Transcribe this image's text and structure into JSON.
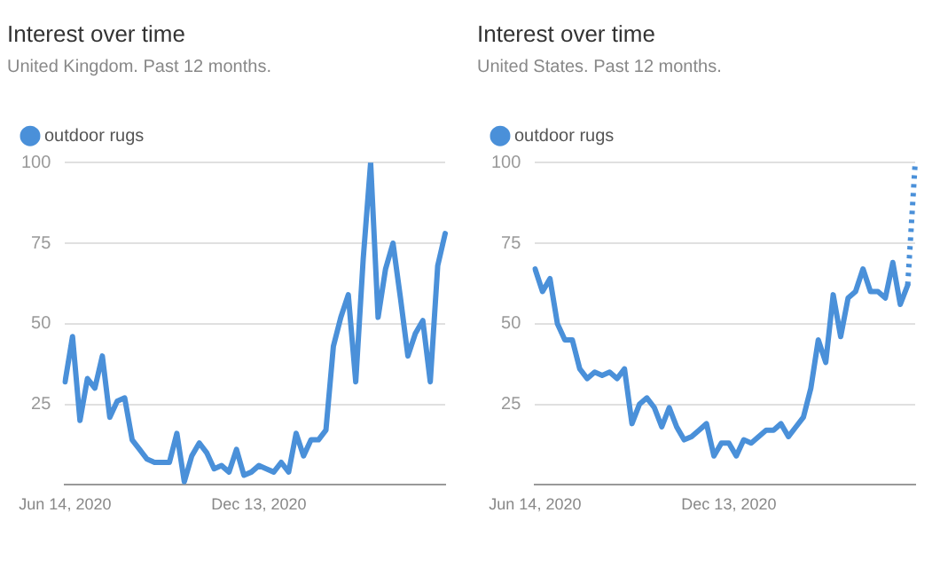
{
  "chart_data": [
    {
      "type": "line",
      "title": "Interest over time",
      "subtitle": "United Kingdom. Past 12 months.",
      "categories": [
        "Jun 14, 2020",
        null,
        null,
        null,
        null,
        null,
        null,
        null,
        null,
        null,
        null,
        null,
        null,
        null,
        null,
        null,
        null,
        null,
        null,
        null,
        null,
        null,
        null,
        null,
        null,
        null,
        "Dec 13, 2020",
        null,
        null,
        null,
        null,
        null,
        null,
        null,
        null,
        null,
        null,
        null,
        null,
        null,
        null,
        null,
        null,
        null,
        null,
        null,
        null,
        null,
        null,
        null,
        null,
        null
      ],
      "series": [
        {
          "name": "outdoor rugs",
          "color": "#4a90d9",
          "values": [
            32,
            46,
            20,
            33,
            30,
            40,
            21,
            26,
            27,
            14,
            11,
            8,
            7,
            7,
            7,
            16,
            1,
            9,
            13,
            10,
            5,
            6,
            4,
            11,
            3,
            4,
            6,
            5,
            4,
            7,
            4,
            16,
            9,
            14,
            14,
            17,
            43,
            52,
            59,
            32,
            70,
            100,
            52,
            67,
            75,
            58,
            40,
            47,
            51,
            32,
            68,
            78
          ]
        }
      ],
      "ylim": [
        0,
        100
      ],
      "yticks": [
        25,
        50,
        75,
        100
      ],
      "grid": "y",
      "legend": "top left",
      "marker": "none",
      "line_style": "solid"
    },
    {
      "type": "line",
      "title": "Interest over time",
      "subtitle": "United States. Past 12 months.",
      "categories": [
        "Jun 14, 2020",
        null,
        null,
        null,
        null,
        null,
        null,
        null,
        null,
        null,
        null,
        null,
        null,
        null,
        null,
        null,
        null,
        null,
        null,
        null,
        null,
        null,
        null,
        null,
        null,
        null,
        "Dec 13, 2020",
        null,
        null,
        null,
        null,
        null,
        null,
        null,
        null,
        null,
        null,
        null,
        null,
        null,
        null,
        null,
        null,
        null,
        null,
        null,
        null,
        null,
        null,
        null,
        null,
        null
      ],
      "series": [
        {
          "name": "outdoor rugs",
          "color": "#4a90d9",
          "values": [
            67,
            60,
            64,
            50,
            45,
            45,
            36,
            33,
            35,
            34,
            35,
            33,
            36,
            19,
            25,
            27,
            24,
            18,
            24,
            18,
            14,
            15,
            17,
            19,
            9,
            13,
            13,
            9,
            14,
            13,
            15,
            17,
            17,
            19,
            15,
            18,
            21,
            30,
            45,
            38,
            59,
            46,
            58,
            60,
            67,
            60,
            60,
            58,
            69,
            56,
            62,
            null
          ]
        },
        {
          "color": "#4a90d9",
          "line_style": "dotted",
          "values": [
            null,
            null,
            null,
            null,
            null,
            null,
            null,
            null,
            null,
            null,
            null,
            null,
            null,
            null,
            null,
            null,
            null,
            null,
            null,
            null,
            null,
            null,
            null,
            null,
            null,
            null,
            null,
            null,
            null,
            null,
            null,
            null,
            null,
            null,
            null,
            null,
            null,
            null,
            null,
            null,
            null,
            null,
            null,
            null,
            null,
            null,
            null,
            null,
            null,
            null,
            62,
            100
          ]
        }
      ],
      "ylim": [
        0,
        100
      ],
      "yticks": [
        25,
        50,
        75,
        100
      ],
      "grid": "y",
      "legend": "top left",
      "marker": "none",
      "line_style": "solid"
    }
  ]
}
